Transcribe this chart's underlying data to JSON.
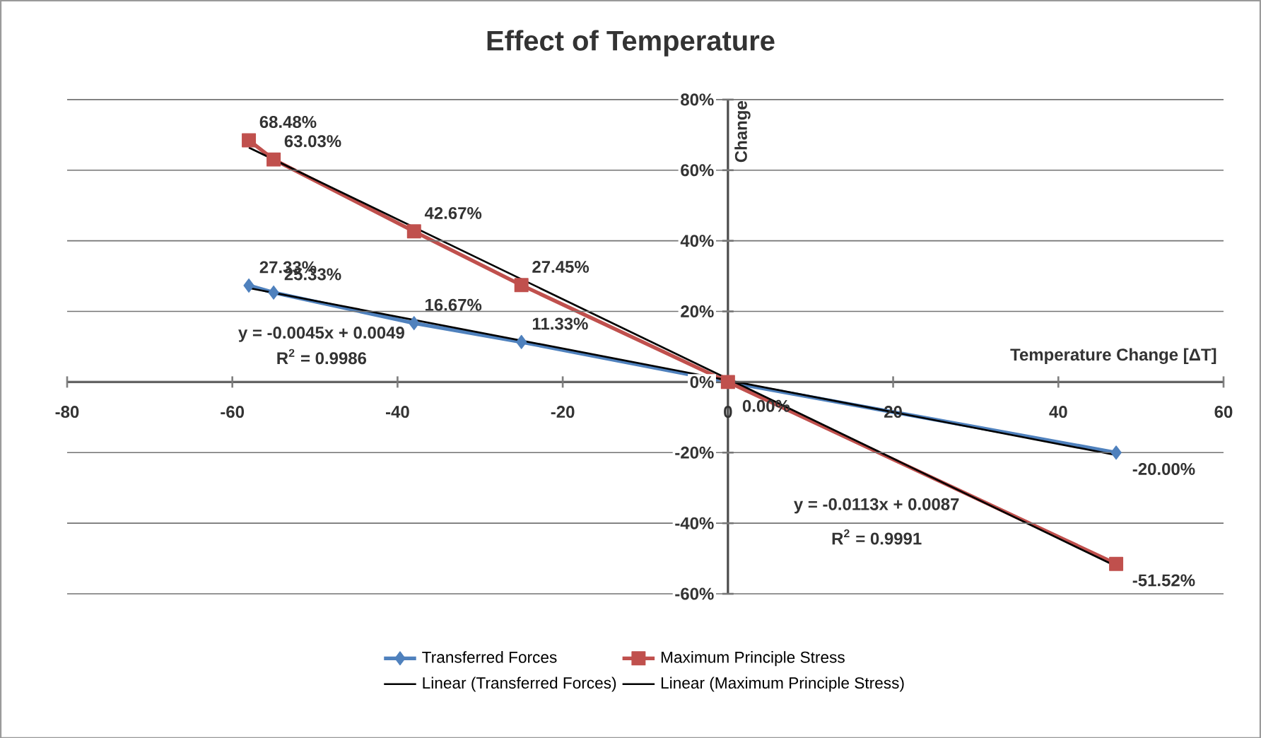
{
  "chart_data": {
    "type": "line",
    "title": "Effect of Temperature",
    "xlabel": "Temperature Change [ΔT]",
    "ylabel": "Change",
    "xlim": [
      -80,
      60
    ],
    "xticks": [
      -80,
      -60,
      -40,
      -20,
      0,
      20,
      40,
      60
    ],
    "ylim": [
      -60,
      80
    ],
    "yticks": [
      {
        "value": -60,
        "label": "-60%"
      },
      {
        "value": -40,
        "label": "-40%"
      },
      {
        "value": -20,
        "label": "-20%"
      },
      {
        "value": 0,
        "label": "0%"
      },
      {
        "value": 20,
        "label": "20%"
      },
      {
        "value": 40,
        "label": "40%"
      },
      {
        "value": 60,
        "label": "60%"
      },
      {
        "value": 80,
        "label": "80%"
      }
    ],
    "grid": "y",
    "legend": "bottom",
    "series": [
      {
        "name": "Transferred Forces",
        "color": "#4f81bd",
        "marker": "diamond",
        "x": [
          -58,
          -55,
          -38,
          -25,
          0,
          47
        ],
        "values": [
          27.33,
          25.33,
          16.67,
          11.33,
          0,
          -20.0
        ],
        "value_labels": [
          "27.33%",
          "25.33%",
          "16.67%",
          "11.33%",
          null,
          "-20.00%"
        ]
      },
      {
        "name": "Maximum Principle Stress",
        "color": "#c0504d",
        "marker": "square",
        "x": [
          -58,
          -55,
          -38,
          -25,
          0,
          47
        ],
        "values": [
          68.48,
          63.03,
          42.67,
          27.45,
          0,
          -51.52
        ],
        "value_labels": [
          "68.48%",
          "63.03%",
          "42.67%",
          "27.45%",
          "0.00%",
          "-51.52%"
        ]
      },
      {
        "name": "Linear (Transferred Forces)",
        "type": "line",
        "color": "#000000",
        "marker": "none",
        "x": [
          -58,
          47
        ],
        "values": [
          26.6,
          -20.7
        ]
      },
      {
        "name": "Linear (Maximum Principle Stress)",
        "type": "line",
        "color": "#000000",
        "marker": "none",
        "x": [
          -58,
          47
        ],
        "values": [
          66.4,
          -52.2
        ]
      }
    ],
    "annotations": [
      "y = -0.0045x + 0.0049",
      "R$^{2}$ = 0.9986",
      "y = -0.0113x + 0.0087",
      "R$^{2}$ = 0.9991"
    ]
  }
}
